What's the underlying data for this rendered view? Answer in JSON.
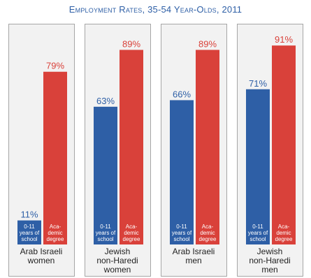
{
  "chart_data": {
    "type": "bar",
    "title": "Employment Rates, 35-54 Year-Olds, 2011",
    "ylim": [
      0,
      100
    ],
    "grid": false,
    "series": [
      {
        "key": "0-11 years of school",
        "bar_text": [
          "0-11",
          "years of",
          "school"
        ],
        "color": "#2e5fa6",
        "label_color": "#2e5fa6"
      },
      {
        "key": "Academic degree",
        "bar_text": [
          "Aca-",
          "demic",
          "degree"
        ],
        "color": "#d9413a",
        "label_color": "#d9413a"
      }
    ],
    "groups": [
      {
        "label_lines": [
          "Arab Israeli",
          "women"
        ],
        "values": [
          11,
          79
        ],
        "value_labels": [
          "11%",
          "79%"
        ]
      },
      {
        "label_lines": [
          "Jewish",
          "non-Haredi",
          "women"
        ],
        "values": [
          63,
          89
        ],
        "value_labels": [
          "63%",
          "89%"
        ]
      },
      {
        "label_lines": [
          "Arab Israeli",
          "men"
        ],
        "values": [
          66,
          89
        ],
        "value_labels": [
          "66%",
          "89%"
        ]
      },
      {
        "label_lines": [
          "Jewish",
          "non-Haredi",
          "men"
        ],
        "values": [
          71,
          91
        ],
        "value_labels": [
          "71%",
          "91%"
        ]
      }
    ]
  }
}
